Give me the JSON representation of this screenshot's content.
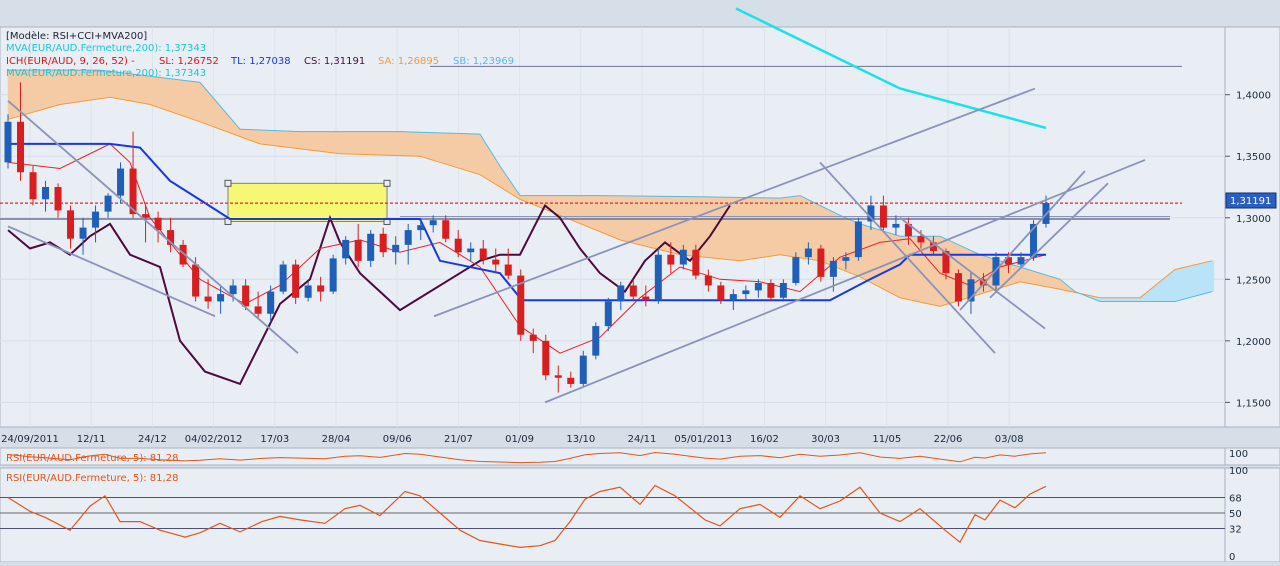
{
  "colors": {
    "background": "#e9eef4",
    "bull_candle": "#1f5fb8",
    "bear_candle": "#d81e1e",
    "mva": "#19e3e8",
    "kumo_fill": "#f5cba6",
    "kumo_bull_fill": "#b9e3f7",
    "tenkan": "#e8202a",
    "kijun": "#1838e0",
    "chikou": "#4d0a3b",
    "span_a": "#f39a3a",
    "span_b": "#58b9e0",
    "price_line": "#e8202a",
    "trend": "#8a93b8",
    "rsi": "#e0561d",
    "highlight": "#f6f772"
  },
  "legend": {
    "model": "[Modèle: RSI+CCI+MVA200]",
    "mva": "MVA(EUR/AUD.Fermeture,200): 1,37343",
    "ich": "ICH(EUR/AUD, 9, 26, 52) -",
    "sl": "SL: 1,26752",
    "tl": "TL: 1,27038",
    "cs": "CS: 1,31191",
    "sa": "SA: 1,26895",
    "sb": "SB: 1,23969",
    "mva2": "MVA(EUR/AUD.Fermeture,200): 1,37343"
  },
  "rsi_mini_legend": "RSI(EUR/AUD.Fermeture, 5): 81,28",
  "rsi_legend": "RSI(EUR/AUD.Fermeture, 5): 81,28",
  "last_price_label": "1,31191",
  "chart_data": [
    {
      "type": "candlestick",
      "instrument": "EUR/AUD",
      "ylim": [
        1.13,
        1.455
      ],
      "y_ticks": [
        1.15,
        1.2,
        1.25,
        1.3,
        1.35,
        1.4
      ],
      "y_tick_labels": [
        "1,1500",
        "1,2000",
        "1,2500",
        "1,3000",
        "1,3500",
        "1,4000"
      ],
      "x_labels": [
        "24/09/2011",
        "12/11",
        "24/12",
        "04/02/2012",
        "17/03",
        "28/04",
        "09/06",
        "21/07",
        "01/09",
        "13/10",
        "24/11",
        "05/01/2013",
        "16/02",
        "30/03",
        "11/05",
        "22/06",
        "03/08"
      ],
      "candles": [
        {
          "o": 1.345,
          "h": 1.384,
          "l": 1.34,
          "c": 1.378
        },
        {
          "o": 1.378,
          "h": 1.41,
          "l": 1.33,
          "c": 1.337
        },
        {
          "o": 1.337,
          "h": 1.342,
          "l": 1.31,
          "c": 1.315
        },
        {
          "o": 1.315,
          "h": 1.33,
          "l": 1.305,
          "c": 1.325
        },
        {
          "o": 1.325,
          "h": 1.328,
          "l": 1.3,
          "c": 1.306
        },
        {
          "o": 1.306,
          "h": 1.31,
          "l": 1.275,
          "c": 1.283
        },
        {
          "o": 1.283,
          "h": 1.3,
          "l": 1.27,
          "c": 1.292
        },
        {
          "o": 1.292,
          "h": 1.31,
          "l": 1.28,
          "c": 1.305
        },
        {
          "o": 1.305,
          "h": 1.32,
          "l": 1.3,
          "c": 1.318
        },
        {
          "o": 1.318,
          "h": 1.345,
          "l": 1.312,
          "c": 1.34
        },
        {
          "o": 1.34,
          "h": 1.37,
          "l": 1.3,
          "c": 1.303
        },
        {
          "o": 1.303,
          "h": 1.31,
          "l": 1.28,
          "c": 1.3
        },
        {
          "o": 1.3,
          "h": 1.305,
          "l": 1.28,
          "c": 1.29
        },
        {
          "o": 1.29,
          "h": 1.3,
          "l": 1.272,
          "c": 1.278
        },
        {
          "o": 1.278,
          "h": 1.282,
          "l": 1.26,
          "c": 1.262
        },
        {
          "o": 1.262,
          "h": 1.268,
          "l": 1.232,
          "c": 1.236
        },
        {
          "o": 1.236,
          "h": 1.25,
          "l": 1.226,
          "c": 1.232
        },
        {
          "o": 1.232,
          "h": 1.245,
          "l": 1.222,
          "c": 1.238
        },
        {
          "o": 1.238,
          "h": 1.25,
          "l": 1.232,
          "c": 1.245
        },
        {
          "o": 1.245,
          "h": 1.25,
          "l": 1.225,
          "c": 1.228
        },
        {
          "o": 1.228,
          "h": 1.24,
          "l": 1.218,
          "c": 1.222
        },
        {
          "o": 1.222,
          "h": 1.245,
          "l": 1.215,
          "c": 1.24
        },
        {
          "o": 1.24,
          "h": 1.265,
          "l": 1.238,
          "c": 1.262
        },
        {
          "o": 1.262,
          "h": 1.266,
          "l": 1.23,
          "c": 1.235
        },
        {
          "o": 1.235,
          "h": 1.248,
          "l": 1.232,
          "c": 1.245
        },
        {
          "o": 1.245,
          "h": 1.252,
          "l": 1.232,
          "c": 1.24
        },
        {
          "o": 1.24,
          "h": 1.27,
          "l": 1.238,
          "c": 1.267
        },
        {
          "o": 1.267,
          "h": 1.285,
          "l": 1.262,
          "c": 1.282
        },
        {
          "o": 1.282,
          "h": 1.295,
          "l": 1.26,
          "c": 1.265
        },
        {
          "o": 1.265,
          "h": 1.29,
          "l": 1.26,
          "c": 1.287
        },
        {
          "o": 1.287,
          "h": 1.292,
          "l": 1.268,
          "c": 1.272
        },
        {
          "o": 1.272,
          "h": 1.285,
          "l": 1.262,
          "c": 1.278
        },
        {
          "o": 1.278,
          "h": 1.295,
          "l": 1.262,
          "c": 1.29
        },
        {
          "o": 1.29,
          "h": 1.298,
          "l": 1.282,
          "c": 1.294
        },
        {
          "o": 1.294,
          "h": 1.302,
          "l": 1.288,
          "c": 1.298
        },
        {
          "o": 1.298,
          "h": 1.302,
          "l": 1.28,
          "c": 1.283
        },
        {
          "o": 1.283,
          "h": 1.29,
          "l": 1.268,
          "c": 1.272
        },
        {
          "o": 1.272,
          "h": 1.28,
          "l": 1.265,
          "c": 1.275
        },
        {
          "o": 1.275,
          "h": 1.282,
          "l": 1.262,
          "c": 1.266
        },
        {
          "o": 1.266,
          "h": 1.275,
          "l": 1.255,
          "c": 1.262
        },
        {
          "o": 1.262,
          "h": 1.275,
          "l": 1.25,
          "c": 1.253
        },
        {
          "o": 1.253,
          "h": 1.258,
          "l": 1.2,
          "c": 1.205
        },
        {
          "o": 1.205,
          "h": 1.21,
          "l": 1.19,
          "c": 1.2
        },
        {
          "o": 1.2,
          "h": 1.205,
          "l": 1.168,
          "c": 1.172
        },
        {
          "o": 1.172,
          "h": 1.18,
          "l": 1.158,
          "c": 1.17
        },
        {
          "o": 1.17,
          "h": 1.175,
          "l": 1.162,
          "c": 1.165
        },
        {
          "o": 1.165,
          "h": 1.192,
          "l": 1.162,
          "c": 1.188
        },
        {
          "o": 1.188,
          "h": 1.215,
          "l": 1.185,
          "c": 1.212
        },
        {
          "o": 1.212,
          "h": 1.235,
          "l": 1.208,
          "c": 1.232
        },
        {
          "o": 1.232,
          "h": 1.248,
          "l": 1.225,
          "c": 1.245
        },
        {
          "o": 1.245,
          "h": 1.25,
          "l": 1.232,
          "c": 1.236
        },
        {
          "o": 1.236,
          "h": 1.245,
          "l": 1.228,
          "c": 1.233
        },
        {
          "o": 1.233,
          "h": 1.275,
          "l": 1.23,
          "c": 1.27
        },
        {
          "o": 1.27,
          "h": 1.28,
          "l": 1.255,
          "c": 1.262
        },
        {
          "o": 1.262,
          "h": 1.278,
          "l": 1.258,
          "c": 1.274
        },
        {
          "o": 1.274,
          "h": 1.278,
          "l": 1.25,
          "c": 1.253
        },
        {
          "o": 1.253,
          "h": 1.258,
          "l": 1.24,
          "c": 1.245
        },
        {
          "o": 1.245,
          "h": 1.248,
          "l": 1.23,
          "c": 1.233
        },
        {
          "o": 1.233,
          "h": 1.242,
          "l": 1.225,
          "c": 1.238
        },
        {
          "o": 1.238,
          "h": 1.245,
          "l": 1.232,
          "c": 1.241
        },
        {
          "o": 1.241,
          "h": 1.25,
          "l": 1.235,
          "c": 1.247
        },
        {
          "o": 1.247,
          "h": 1.25,
          "l": 1.232,
          "c": 1.235
        },
        {
          "o": 1.235,
          "h": 1.25,
          "l": 1.232,
          "c": 1.247
        },
        {
          "o": 1.247,
          "h": 1.272,
          "l": 1.245,
          "c": 1.268
        },
        {
          "o": 1.268,
          "h": 1.28,
          "l": 1.262,
          "c": 1.275
        },
        {
          "o": 1.275,
          "h": 1.278,
          "l": 1.248,
          "c": 1.252
        },
        {
          "o": 1.252,
          "h": 1.268,
          "l": 1.24,
          "c": 1.265
        },
        {
          "o": 1.265,
          "h": 1.272,
          "l": 1.258,
          "c": 1.268
        },
        {
          "o": 1.268,
          "h": 1.3,
          "l": 1.265,
          "c": 1.297
        },
        {
          "o": 1.297,
          "h": 1.318,
          "l": 1.29,
          "c": 1.31
        },
        {
          "o": 1.31,
          "h": 1.318,
          "l": 1.288,
          "c": 1.292
        },
        {
          "o": 1.292,
          "h": 1.302,
          "l": 1.286,
          "c": 1.295
        },
        {
          "o": 1.295,
          "h": 1.3,
          "l": 1.278,
          "c": 1.285
        },
        {
          "o": 1.285,
          "h": 1.29,
          "l": 1.275,
          "c": 1.28
        },
        {
          "o": 1.28,
          "h": 1.285,
          "l": 1.27,
          "c": 1.273
        },
        {
          "o": 1.273,
          "h": 1.275,
          "l": 1.25,
          "c": 1.255
        },
        {
          "o": 1.255,
          "h": 1.258,
          "l": 1.228,
          "c": 1.232
        },
        {
          "o": 1.232,
          "h": 1.256,
          "l": 1.222,
          "c": 1.25
        },
        {
          "o": 1.25,
          "h": 1.255,
          "l": 1.24,
          "c": 1.245
        },
        {
          "o": 1.245,
          "h": 1.272,
          "l": 1.24,
          "c": 1.268
        },
        {
          "o": 1.268,
          "h": 1.272,
          "l": 1.255,
          "c": 1.262
        },
        {
          "o": 1.262,
          "h": 1.272,
          "l": 1.26,
          "c": 1.268
        },
        {
          "o": 1.268,
          "h": 1.298,
          "l": 1.265,
          "c": 1.295
        },
        {
          "o": 1.295,
          "h": 1.318,
          "l": 1.292,
          "c": 1.312
        }
      ],
      "mva200": {
        "x": [
          736,
          900,
          1046
        ],
        "y": [
          1.47,
          1.405,
          1.373
        ]
      },
      "tenkan": {
        "x": [
          8,
          60,
          110,
          130,
          150,
          200,
          245,
          280,
          320,
          360,
          400,
          440,
          480,
          520,
          560,
          600,
          640,
          680,
          720,
          760,
          800,
          840,
          880,
          910,
          940,
          970,
          1000,
          1046
        ],
        "y": [
          1.345,
          1.34,
          1.36,
          1.345,
          1.3,
          1.25,
          1.23,
          1.245,
          1.275,
          1.282,
          1.272,
          1.28,
          1.26,
          1.212,
          1.19,
          1.203,
          1.235,
          1.26,
          1.25,
          1.248,
          1.24,
          1.268,
          1.28,
          1.283,
          1.255,
          1.245,
          1.26,
          1.27
        ]
      },
      "kijun": {
        "x": [
          8,
          110,
          140,
          170,
          205,
          230,
          330,
          370,
          420,
          440,
          500,
          522,
          830,
          870,
          900,
          910,
          1046
        ],
        "y": [
          1.36,
          1.36,
          1.357,
          1.33,
          1.312,
          1.299,
          1.299,
          1.299,
          1.299,
          1.265,
          1.255,
          1.233,
          1.233,
          1.25,
          1.262,
          1.27,
          1.27
        ]
      },
      "chikou": {
        "x": [
          8,
          30,
          50,
          70,
          90,
          110,
          130,
          160,
          180,
          205,
          240,
          280,
          310,
          330,
          340,
          360,
          380,
          400,
          430,
          450,
          480,
          500,
          520,
          545,
          560,
          580,
          600,
          625,
          645,
          665,
          690,
          710,
          730
        ],
        "y": [
          1.29,
          1.275,
          1.28,
          1.27,
          1.285,
          1.295,
          1.27,
          1.26,
          1.2,
          1.175,
          1.165,
          1.23,
          1.25,
          1.3,
          1.28,
          1.255,
          1.24,
          1.225,
          1.24,
          1.25,
          1.265,
          1.27,
          1.27,
          1.31,
          1.3,
          1.275,
          1.255,
          1.24,
          1.265,
          1.28,
          1.265,
          1.285,
          1.31
        ]
      },
      "span_a": {
        "x": [
          8,
          60,
          110,
          150,
          200,
          260,
          340,
          420,
          480,
          520,
          560,
          620,
          680,
          740,
          780,
          820,
          860,
          900,
          940,
          980,
          1020,
          1060,
          1100,
          1140,
          1175,
          1212
        ],
        "y": [
          1.38,
          1.392,
          1.398,
          1.392,
          1.378,
          1.36,
          1.352,
          1.35,
          1.335,
          1.315,
          1.302,
          1.282,
          1.27,
          1.265,
          1.27,
          1.265,
          1.252,
          1.235,
          1.228,
          1.238,
          1.248,
          1.242,
          1.235,
          1.235,
          1.258,
          1.265
        ]
      },
      "span_b": {
        "x": [
          8,
          100,
          200,
          240,
          300,
          400,
          480,
          500,
          520,
          600,
          700,
          780,
          800,
          820,
          840,
          860,
          900,
          940,
          980,
          1020,
          1060,
          1075,
          1100,
          1140,
          1175,
          1212
        ],
        "y": [
          1.42,
          1.42,
          1.41,
          1.372,
          1.37,
          1.37,
          1.368,
          1.342,
          1.318,
          1.318,
          1.317,
          1.316,
          1.318,
          1.31,
          1.302,
          1.295,
          1.285,
          1.285,
          1.27,
          1.26,
          1.25,
          1.24,
          1.232,
          1.232,
          1.232,
          1.24
        ]
      },
      "current_price": 1.3119,
      "horizontal_lines": [
        1.423,
        1.3,
        1.3
      ],
      "trend_lines": [
        {
          "x1": 8,
          "y1": 1.395,
          "x2": 298,
          "y2": 1.19
        },
        {
          "x1": 8,
          "y1": 1.293,
          "x2": 215,
          "y2": 1.22
        },
        {
          "x1": 434,
          "y1": 1.22,
          "x2": 1035,
          "y2": 1.405
        },
        {
          "x1": 545,
          "y1": 1.15,
          "x2": 1145,
          "y2": 1.347
        },
        {
          "x1": 820,
          "y1": 1.345,
          "x2": 995,
          "y2": 1.19
        },
        {
          "x1": 900,
          "y1": 1.3,
          "x2": 1045,
          "y2": 1.21
        },
        {
          "x1": 960,
          "y1": 1.225,
          "x2": 1085,
          "y2": 1.338
        },
        {
          "x1": 990,
          "y1": 1.235,
          "x2": 1108,
          "y2": 1.328
        }
      ]
    },
    {
      "type": "line",
      "title": "RSI(EUR/AUD.Fermeture, 5): 81,28",
      "ylim": [
        0,
        100
      ],
      "y_ticks": [
        0,
        32,
        50,
        68,
        100
      ],
      "y_tick_labels": [
        "0",
        "32",
        "50",
        "68",
        "100"
      ],
      "rsi": {
        "x": [
          8,
          30,
          45,
          70,
          90,
          105,
          120,
          140,
          160,
          185,
          200,
          220,
          240,
          262,
          280,
          300,
          325,
          345,
          360,
          380,
          405,
          420,
          440,
          460,
          480,
          500,
          520,
          540,
          555,
          570,
          585,
          600,
          620,
          640,
          655,
          675,
          690,
          705,
          720,
          740,
          760,
          780,
          800,
          820,
          840,
          860,
          880,
          900,
          920,
          945,
          960,
          975,
          985,
          1000,
          1015,
          1030,
          1046
        ],
        "y": [
          68,
          52,
          45,
          30,
          58,
          70,
          40,
          40,
          30,
          22,
          27,
          38,
          28,
          40,
          46,
          42,
          38,
          55,
          59,
          47,
          75,
          70,
          50,
          30,
          18,
          14,
          10,
          12,
          18,
          40,
          66,
          75,
          80,
          60,
          82,
          70,
          56,
          42,
          35,
          55,
          60,
          45,
          70,
          55,
          64,
          80,
          50,
          40,
          55,
          30,
          16,
          48,
          42,
          65,
          56,
          72,
          81
        ]
      }
    },
    {
      "type": "line",
      "title": "RSI(EUR/AUD.Fermeture, 5): 81,28",
      "ylim": [
        0,
        100
      ],
      "y_tick_labels": [
        "100"
      ]
    }
  ]
}
